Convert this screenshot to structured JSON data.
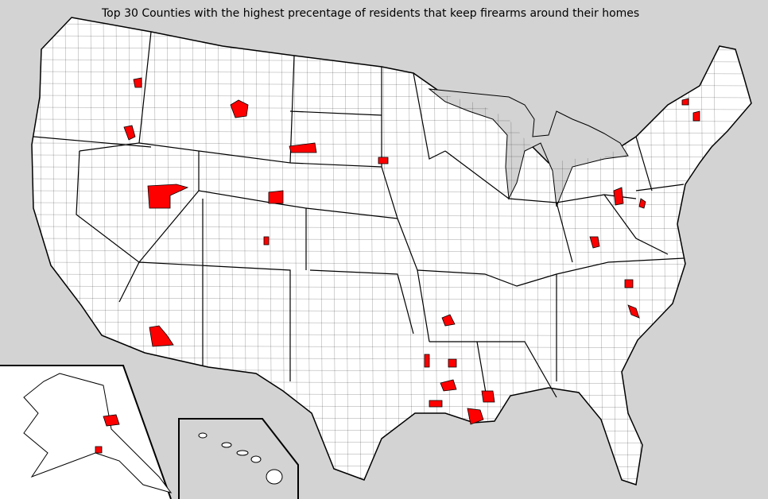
{
  "title": "Top 30 Counties with the highest precentage of residents that keep firearms around their homes",
  "colors": {
    "background": "#d3d3d3",
    "land": "#ffffff",
    "border": "#000000",
    "highlight": "#ff0000"
  },
  "highlighted_county_count": 30
}
